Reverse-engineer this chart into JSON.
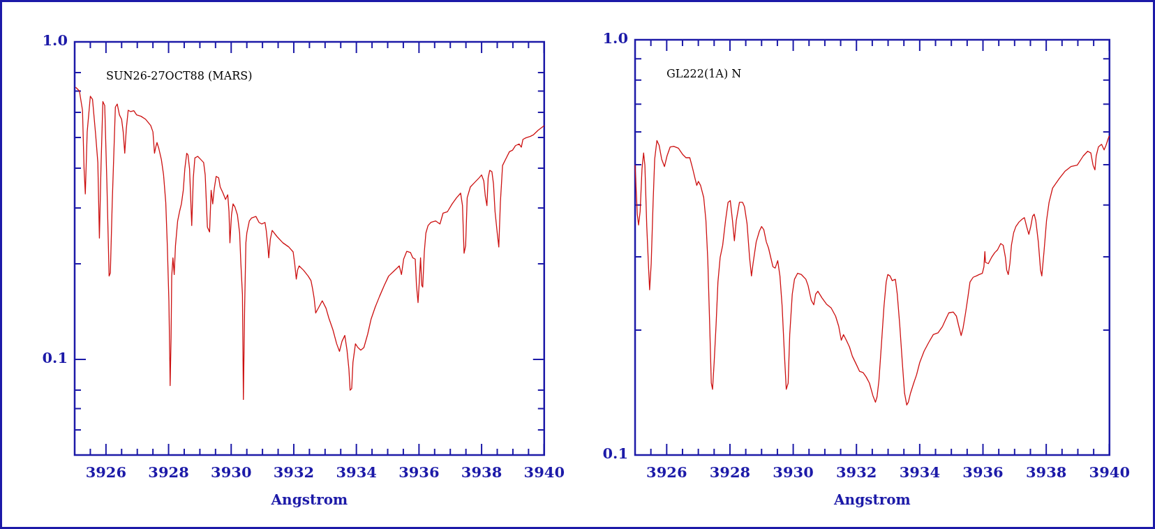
{
  "chart_data": [
    {
      "type": "line",
      "xlabel": "Angstrom",
      "annotations": [
        "SUN26-27OCT88 (MARS)"
      ],
      "color": "#cc1010",
      "log": "y",
      "xlim": [
        3925,
        3940
      ],
      "ylim": [
        0.05,
        1.0
      ],
      "xticks": [
        {
          "value": 3925.5,
          "label": null
        },
        3926,
        {
          "value": 3926.5,
          "label": null
        },
        {
          "value": 3927,
          "label": null
        },
        {
          "value": 3927.5,
          "label": null
        },
        3928,
        {
          "value": 3928.5,
          "label": null
        },
        {
          "value": 3929,
          "label": null
        },
        {
          "value": 3929.5,
          "label": null
        },
        3930,
        {
          "value": 3930.5,
          "label": null
        },
        {
          "value": 3931,
          "label": null
        },
        {
          "value": 3931.5,
          "label": null
        },
        3932,
        {
          "value": 3932.5,
          "label": null
        },
        {
          "value": 3933,
          "label": null
        },
        {
          "value": 3933.5,
          "label": null
        },
        3934,
        {
          "value": 3934.5,
          "label": null
        },
        {
          "value": 3935,
          "label": null
        },
        {
          "value": 3935.5,
          "label": null
        },
        3936,
        {
          "value": 3936.5,
          "label": null
        },
        {
          "value": 3937,
          "label": null
        },
        {
          "value": 3937.5,
          "label": null
        },
        3938,
        {
          "value": 3938.5,
          "label": null
        },
        {
          "value": 3939,
          "label": null
        },
        {
          "value": 3939.5,
          "label": null
        },
        3940
      ],
      "yticks": [
        {
          "value": 1,
          "label": "1.0"
        },
        {
          "value": 0.8,
          "label": null
        },
        {
          "value": 0.7,
          "label": null
        },
        {
          "value": 0.6,
          "label": null
        },
        {
          "value": 0.5,
          "label": null
        },
        {
          "value": 0.4,
          "label": null
        },
        {
          "value": 0.3,
          "label": null
        },
        {
          "value": 0.2,
          "label": null
        },
        0.1,
        {
          "value": 0.08,
          "label": null
        },
        {
          "value": 0.07,
          "label": null
        },
        {
          "value": 0.06,
          "label": null
        }
      ],
      "x": [
        3925.03,
        3925.15,
        3925.25,
        3925.3,
        3925.34,
        3925.4,
        3925.5,
        3925.57,
        3925.67,
        3925.74,
        3925.79,
        3925.84,
        3925.9,
        3925.96,
        3926.03,
        3926.1,
        3926.14,
        3926.2,
        3926.3,
        3926.36,
        3926.43,
        3926.5,
        3926.55,
        3926.6,
        3926.65,
        3926.71,
        3926.79,
        3926.89,
        3926.98,
        3927.12,
        3927.27,
        3927.43,
        3927.5,
        3927.55,
        3927.59,
        3927.63,
        3927.69,
        3927.77,
        3927.84,
        3927.91,
        3927.96,
        3928.01,
        3928.04,
        3928.05,
        3928.08,
        3928.1,
        3928.14,
        3928.18,
        3928.22,
        3928.29,
        3928.35,
        3928.41,
        3928.47,
        3928.52,
        3928.58,
        3928.62,
        3928.67,
        3928.74,
        3928.79,
        3928.84,
        3928.93,
        3929.03,
        3929.12,
        3929.17,
        3929.24,
        3929.31,
        3929.36,
        3929.41,
        3929.46,
        3929.52,
        3929.6,
        3929.65,
        3929.74,
        3929.82,
        3929.89,
        3929.93,
        3929.96,
        3930.01,
        3930.06,
        3930.12,
        3930.2,
        3930.27,
        3930.31,
        3930.36,
        3930.39,
        3930.43,
        3930.47,
        3930.5,
        3930.58,
        3930.65,
        3930.79,
        3930.89,
        3930.98,
        3931.08,
        3931.12,
        3931.17,
        3931.2,
        3931.25,
        3931.31,
        3931.46,
        3931.65,
        3931.84,
        3931.98,
        3932.03,
        3932.08,
        3932.12,
        3932.17,
        3932.31,
        3932.46,
        3932.55,
        3932.6,
        3932.65,
        3932.7,
        3932.91,
        3933.03,
        3933.12,
        3933.25,
        3933.37,
        3933.46,
        3933.54,
        3933.63,
        3933.7,
        3933.76,
        3933.8,
        3933.85,
        3933.89,
        3933.97,
        3934.05,
        3934.14,
        3934.24,
        3934.36,
        3934.47,
        3934.6,
        3934.74,
        3934.89,
        3935.03,
        3935.18,
        3935.37,
        3935.44,
        3935.51,
        3935.61,
        3935.73,
        3935.8,
        3935.88,
        3935.92,
        3935.97,
        3936.02,
        3936.05,
        3936.09,
        3936.12,
        3936.17,
        3936.22,
        3936.29,
        3936.38,
        3936.53,
        3936.67,
        3936.77,
        3936.91,
        3937.06,
        3937.2,
        3937.33,
        3937.39,
        3937.44,
        3937.49,
        3937.54,
        3937.64,
        3937.78,
        3937.92,
        3938.0,
        3938.07,
        3938.12,
        3938.17,
        3938.21,
        3938.26,
        3938.33,
        3938.38,
        3938.43,
        3938.5,
        3938.55,
        3938.6,
        3938.67,
        3938.79,
        3938.89,
        3938.99,
        3939.08,
        3939.2,
        3939.27,
        3939.32,
        3939.42,
        3939.56,
        3939.66,
        3939.81,
        3940.0
      ],
      "values": [
        0.72,
        0.701,
        0.609,
        0.399,
        0.332,
        0.521,
        0.674,
        0.659,
        0.51,
        0.417,
        0.241,
        0.399,
        0.649,
        0.63,
        0.357,
        0.183,
        0.187,
        0.312,
        0.623,
        0.637,
        0.589,
        0.57,
        0.521,
        0.446,
        0.533,
        0.609,
        0.603,
        0.607,
        0.589,
        0.583,
        0.57,
        0.545,
        0.521,
        0.446,
        0.466,
        0.482,
        0.461,
        0.426,
        0.381,
        0.312,
        0.228,
        0.153,
        0.0978,
        0.0827,
        0.117,
        0.183,
        0.209,
        0.185,
        0.228,
        0.273,
        0.292,
        0.309,
        0.341,
        0.399,
        0.446,
        0.441,
        0.399,
        0.264,
        0.373,
        0.431,
        0.436,
        0.426,
        0.417,
        0.381,
        0.261,
        0.252,
        0.341,
        0.309,
        0.345,
        0.377,
        0.373,
        0.349,
        0.334,
        0.319,
        0.33,
        0.292,
        0.233,
        0.285,
        0.309,
        0.302,
        0.285,
        0.25,
        0.2,
        0.16,
        0.0748,
        0.146,
        0.233,
        0.25,
        0.273,
        0.279,
        0.282,
        0.27,
        0.267,
        0.27,
        0.255,
        0.228,
        0.209,
        0.239,
        0.255,
        0.244,
        0.233,
        0.226,
        0.218,
        0.2,
        0.179,
        0.191,
        0.197,
        0.191,
        0.183,
        0.177,
        0.167,
        0.156,
        0.14,
        0.153,
        0.145,
        0.135,
        0.124,
        0.112,
        0.106,
        0.114,
        0.119,
        0.107,
        0.0935,
        0.08,
        0.0809,
        0.0978,
        0.112,
        0.109,
        0.107,
        0.109,
        0.12,
        0.134,
        0.146,
        0.158,
        0.171,
        0.183,
        0.189,
        0.197,
        0.185,
        0.207,
        0.219,
        0.217,
        0.209,
        0.207,
        0.171,
        0.151,
        0.183,
        0.209,
        0.171,
        0.169,
        0.218,
        0.25,
        0.264,
        0.27,
        0.273,
        0.267,
        0.289,
        0.292,
        0.309,
        0.323,
        0.334,
        0.305,
        0.216,
        0.228,
        0.323,
        0.349,
        0.361,
        0.373,
        0.381,
        0.365,
        0.326,
        0.305,
        0.373,
        0.394,
        0.39,
        0.357,
        0.292,
        0.25,
        0.226,
        0.312,
        0.408,
        0.431,
        0.451,
        0.456,
        0.471,
        0.477,
        0.466,
        0.493,
        0.499,
        0.504,
        0.51,
        0.527,
        0.545
      ]
    },
    {
      "type": "line",
      "xlabel": "Angstrom",
      "annotations": [
        "GL222(1A) N"
      ],
      "color": "#cc1010",
      "log": "y",
      "xlim": [
        3925,
        3940
      ],
      "ylim": [
        0.1,
        1.0
      ],
      "xticks": [
        {
          "value": 3925.5,
          "label": null
        },
        3926,
        {
          "value": 3926.5,
          "label": null
        },
        {
          "value": 3927,
          "label": null
        },
        {
          "value": 3927.5,
          "label": null
        },
        3928,
        {
          "value": 3928.5,
          "label": null
        },
        {
          "value": 3929,
          "label": null
        },
        {
          "value": 3929.5,
          "label": null
        },
        3930,
        {
          "value": 3930.5,
          "label": null
        },
        {
          "value": 3931,
          "label": null
        },
        {
          "value": 3931.5,
          "label": null
        },
        3932,
        {
          "value": 3932.5,
          "label": null
        },
        {
          "value": 3933,
          "label": null
        },
        {
          "value": 3933.5,
          "label": null
        },
        3934,
        {
          "value": 3934.5,
          "label": null
        },
        {
          "value": 3935,
          "label": null
        },
        {
          "value": 3935.5,
          "label": null
        },
        3936,
        {
          "value": 3936.5,
          "label": null
        },
        {
          "value": 3937,
          "label": null
        },
        {
          "value": 3937.5,
          "label": null
        },
        3938,
        {
          "value": 3938.5,
          "label": null
        },
        {
          "value": 3939,
          "label": null
        },
        {
          "value": 3939.5,
          "label": null
        },
        3940
      ],
      "yticks": [
        {
          "value": 1,
          "label": "1.0"
        },
        {
          "value": 0.9,
          "label": null
        },
        {
          "value": 0.8,
          "label": null
        },
        {
          "value": 0.7,
          "label": null
        },
        {
          "value": 0.6,
          "label": null
        },
        {
          "value": 0.5,
          "label": null
        },
        {
          "value": 0.4,
          "label": null
        },
        {
          "value": 0.3,
          "label": null
        },
        {
          "value": 0.2,
          "label": null
        },
        0.1
      ],
      "x": [
        3925.0,
        3925.03,
        3925.07,
        3925.11,
        3925.16,
        3925.22,
        3925.27,
        3925.31,
        3925.37,
        3925.43,
        3925.46,
        3925.51,
        3925.57,
        3925.62,
        3925.69,
        3925.76,
        3925.84,
        3925.93,
        3926.01,
        3926.11,
        3926.22,
        3926.37,
        3926.51,
        3926.61,
        3926.73,
        3926.82,
        3926.9,
        3926.95,
        3927.0,
        3927.07,
        3927.17,
        3927.24,
        3927.3,
        3927.36,
        3927.41,
        3927.45,
        3927.5,
        3927.56,
        3927.62,
        3927.69,
        3927.77,
        3927.86,
        3927.94,
        3928.01,
        3928.08,
        3928.14,
        3928.2,
        3928.3,
        3928.4,
        3928.46,
        3928.54,
        3928.62,
        3928.68,
        3928.73,
        3928.83,
        3928.93,
        3929.0,
        3929.07,
        3929.15,
        3929.22,
        3929.29,
        3929.36,
        3929.43,
        3929.51,
        3929.58,
        3929.65,
        3929.72,
        3929.78,
        3929.84,
        3929.89,
        3929.97,
        3930.04,
        3930.14,
        3930.26,
        3930.4,
        3930.47,
        3930.57,
        3930.65,
        3930.71,
        3930.78,
        3930.91,
        3931.05,
        3931.2,
        3931.34,
        3931.44,
        3931.52,
        3931.59,
        3931.68,
        3931.78,
        3931.87,
        3932.0,
        3932.1,
        3932.21,
        3932.31,
        3932.41,
        3932.52,
        3932.6,
        3932.65,
        3932.71,
        3932.79,
        3932.87,
        3932.94,
        3932.99,
        3933.06,
        3933.13,
        3933.23,
        3933.29,
        3933.37,
        3933.45,
        3933.52,
        3933.59,
        3933.64,
        3933.71,
        3933.81,
        3933.9,
        3934.0,
        3934.14,
        3934.29,
        3934.43,
        3934.58,
        3934.72,
        3934.82,
        3934.92,
        3935.06,
        3935.16,
        3935.23,
        3935.31,
        3935.37,
        3935.45,
        3935.52,
        3935.59,
        3935.69,
        3935.79,
        3935.88,
        3935.98,
        3936.03,
        3936.06,
        3936.08,
        3936.17,
        3936.27,
        3936.37,
        3936.46,
        3936.56,
        3936.64,
        3936.71,
        3936.75,
        3936.8,
        3936.85,
        3936.9,
        3936.97,
        3937.04,
        3937.14,
        3937.24,
        3937.31,
        3937.38,
        3937.45,
        3937.51,
        3937.57,
        3937.62,
        3937.67,
        3937.75,
        3937.82,
        3937.86,
        3937.93,
        3938.01,
        3938.09,
        3938.2,
        3938.4,
        3938.59,
        3938.78,
        3938.98,
        3939.17,
        3939.31,
        3939.41,
        3939.48,
        3939.54,
        3939.58,
        3939.65,
        3939.75,
        3939.83,
        3939.89,
        3939.97,
        3940.0
      ],
      "values": [
        0.499,
        0.443,
        0.38,
        0.358,
        0.386,
        0.49,
        0.534,
        0.499,
        0.355,
        0.279,
        0.25,
        0.289,
        0.406,
        0.516,
        0.572,
        0.557,
        0.516,
        0.495,
        0.525,
        0.552,
        0.554,
        0.548,
        0.529,
        0.52,
        0.52,
        0.49,
        0.462,
        0.446,
        0.456,
        0.446,
        0.417,
        0.367,
        0.294,
        0.205,
        0.149,
        0.144,
        0.167,
        0.205,
        0.261,
        0.299,
        0.32,
        0.367,
        0.406,
        0.41,
        0.367,
        0.328,
        0.367,
        0.406,
        0.406,
        0.396,
        0.361,
        0.299,
        0.27,
        0.289,
        0.326,
        0.346,
        0.355,
        0.349,
        0.326,
        0.315,
        0.299,
        0.284,
        0.282,
        0.294,
        0.27,
        0.228,
        0.176,
        0.144,
        0.149,
        0.195,
        0.244,
        0.265,
        0.274,
        0.272,
        0.265,
        0.256,
        0.236,
        0.23,
        0.244,
        0.248,
        0.239,
        0.231,
        0.226,
        0.216,
        0.204,
        0.189,
        0.195,
        0.189,
        0.182,
        0.173,
        0.165,
        0.159,
        0.158,
        0.154,
        0.149,
        0.139,
        0.134,
        0.138,
        0.151,
        0.185,
        0.228,
        0.261,
        0.272,
        0.27,
        0.263,
        0.265,
        0.244,
        0.205,
        0.167,
        0.141,
        0.132,
        0.134,
        0.141,
        0.149,
        0.156,
        0.167,
        0.178,
        0.187,
        0.195,
        0.197,
        0.204,
        0.212,
        0.22,
        0.221,
        0.216,
        0.205,
        0.194,
        0.202,
        0.22,
        0.239,
        0.261,
        0.268,
        0.27,
        0.272,
        0.274,
        0.284,
        0.309,
        0.291,
        0.289,
        0.299,
        0.307,
        0.312,
        0.323,
        0.32,
        0.299,
        0.279,
        0.272,
        0.289,
        0.32,
        0.343,
        0.355,
        0.364,
        0.37,
        0.373,
        0.355,
        0.34,
        0.355,
        0.376,
        0.38,
        0.367,
        0.326,
        0.279,
        0.27,
        0.309,
        0.367,
        0.406,
        0.439,
        0.462,
        0.482,
        0.495,
        0.499,
        0.525,
        0.539,
        0.534,
        0.499,
        0.486,
        0.525,
        0.552,
        0.56,
        0.543,
        0.557,
        0.581,
        0.587
      ]
    }
  ]
}
